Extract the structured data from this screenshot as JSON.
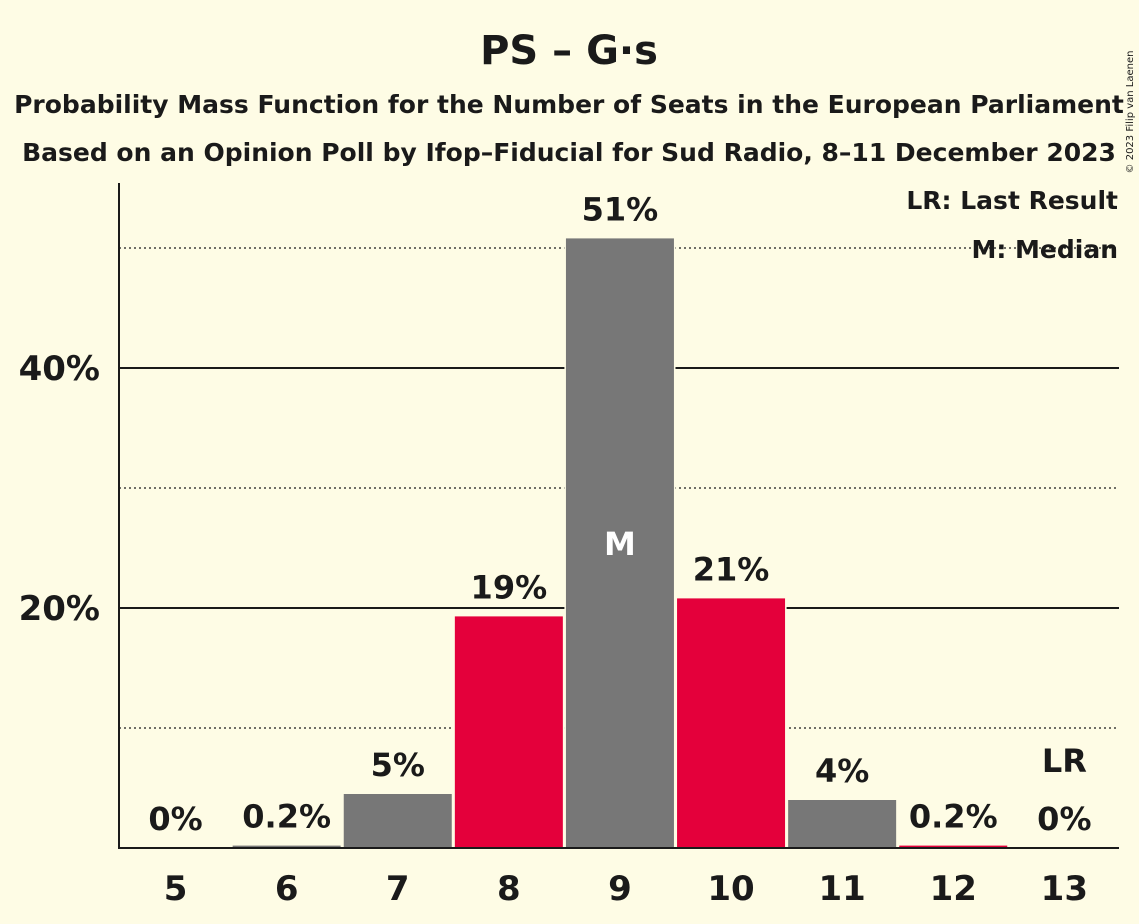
{
  "chart_data": {
    "type": "bar",
    "title": "PS – G·s",
    "subtitle_lines": [
      "Probability Mass Function for the Number of Seats in the European Parliament",
      "Based on an Opinion Poll by Ifop–Fiducial for Sud Radio, 8–11 December 2023"
    ],
    "categories": [
      "5",
      "6",
      "7",
      "8",
      "9",
      "10",
      "11",
      "12",
      "13"
    ],
    "values": [
      0,
      0.2,
      4.5,
      19.3,
      50.8,
      20.8,
      4.0,
      0.2,
      0
    ],
    "value_labels": [
      "0%",
      "0.2%",
      "5%",
      "19%",
      "51%",
      "21%",
      "4%",
      "0.2%",
      "0%"
    ],
    "bar_colors": [
      "#777777",
      "#777777",
      "#777777",
      "#e4003b",
      "#777777",
      "#e4003b",
      "#777777",
      "#e4003b",
      "#777777"
    ],
    "ylim": [
      0,
      55
    ],
    "y_ticks": [
      {
        "value": 20,
        "label": "20%"
      },
      {
        "value": 40,
        "label": "40%"
      }
    ],
    "y_minor_gridlines": [
      10,
      30,
      50
    ],
    "median_index": 4,
    "median_marker": "M",
    "last_result_index": 8,
    "last_result_marker": "LR",
    "legend": {
      "lr": "LR: Last Result",
      "m": "M: Median",
      "placement": "top-right"
    },
    "colors": {
      "background": "#fefce5",
      "grey": "#777777",
      "red": "#e4003b",
      "text": "#1a1a1a"
    }
  },
  "copyright": "© 2023 Filip van Laenen"
}
